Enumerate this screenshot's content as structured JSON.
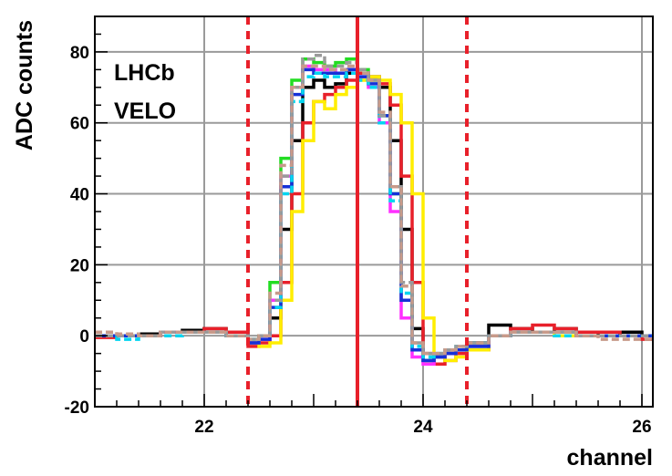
{
  "chart_data": {
    "type": "line",
    "step": true,
    "xlabel": "channel",
    "ylabel": "ADC counts",
    "xlim": [
      21,
      26.1
    ],
    "ylim": [
      -20,
      90
    ],
    "x_ticks": [
      22,
      24,
      26
    ],
    "y_ticks": [
      -20,
      0,
      20,
      40,
      60,
      80
    ],
    "grid": true,
    "annotations": [
      "LHCb",
      "VELO"
    ],
    "vertical_lines": [
      {
        "x": 22.4,
        "style": "dashed",
        "color": "#e8202a"
      },
      {
        "x": 23.4,
        "style": "solid",
        "color": "#e8202a"
      },
      {
        "x": 24.4,
        "style": "dashed",
        "color": "#e8202a"
      }
    ],
    "x": [
      21.0,
      21.2,
      21.4,
      21.6,
      21.8,
      22.0,
      22.2,
      22.4,
      22.5,
      22.6,
      22.7,
      22.8,
      22.9,
      23.0,
      23.1,
      23.2,
      23.3,
      23.4,
      23.5,
      23.6,
      23.7,
      23.8,
      23.9,
      24.0,
      24.1,
      24.2,
      24.3,
      24.4,
      24.6,
      24.8,
      25.0,
      25.2,
      25.4,
      25.6,
      25.8,
      26.0
    ],
    "series": [
      {
        "color": "#000000",
        "dash": false,
        "values": [
          0,
          0,
          0.5,
          1,
          1.5,
          2,
          1,
          -2,
          0,
          5,
          30,
          55,
          70,
          72,
          70,
          71,
          74,
          74,
          73,
          70,
          55,
          30,
          2,
          -7,
          -6,
          -5,
          -4,
          -2,
          3,
          2,
          1,
          2,
          1,
          0,
          1,
          0
        ]
      },
      {
        "color": "#e8202a",
        "dash": false,
        "values": [
          -0.5,
          0,
          0,
          1,
          1,
          2,
          1,
          -3,
          -2,
          0,
          15,
          40,
          60,
          66,
          68,
          70,
          72,
          74,
          73,
          71,
          65,
          45,
          15,
          -5,
          -8,
          -7,
          -5,
          -4,
          0,
          2,
          3,
          2,
          1,
          1,
          0,
          -1
        ]
      },
      {
        "color": "#ffee00",
        "dash": false,
        "values": [
          0,
          0,
          0,
          1,
          1,
          1,
          0,
          -2,
          -3,
          -2,
          10,
          35,
          55,
          66,
          64,
          68,
          70,
          72,
          73,
          72,
          68,
          60,
          40,
          5,
          -6,
          -7,
          -6,
          -4,
          0,
          1,
          1,
          0,
          0,
          0,
          0,
          0
        ]
      },
      {
        "color": "#22dd22",
        "dash": false,
        "values": [
          0,
          0,
          0,
          1,
          1,
          1,
          0,
          -2,
          0,
          15,
          50,
          72,
          78,
          77,
          76,
          77,
          78,
          75,
          72,
          62,
          40,
          10,
          -4,
          -7,
          -6,
          -5,
          -4,
          -3,
          0,
          1,
          1,
          1,
          0,
          0,
          0,
          0
        ]
      },
      {
        "color": "#ff30ff",
        "dash": false,
        "values": [
          0,
          0,
          0,
          1,
          1,
          1,
          0,
          -2,
          -1,
          10,
          45,
          70,
          76,
          75,
          75,
          74,
          75,
          73,
          70,
          60,
          35,
          5,
          -6,
          -8,
          -6,
          -5,
          -4,
          -3,
          0,
          1,
          1,
          1,
          0,
          0,
          0,
          0
        ]
      },
      {
        "color": "#1530d8",
        "dash": false,
        "values": [
          0,
          0,
          0,
          1,
          1,
          1,
          0,
          -2,
          -1,
          8,
          42,
          68,
          75,
          74,
          74,
          74,
          75,
          73,
          71,
          62,
          40,
          10,
          -4,
          -7,
          -6,
          -5,
          -4,
          -3,
          0,
          1,
          1,
          1,
          0,
          0,
          0,
          0
        ]
      },
      {
        "color": "#00d5f0",
        "dash": true,
        "values": [
          0,
          -1,
          0,
          0,
          1,
          1,
          0,
          -1,
          0,
          8,
          40,
          66,
          73,
          74,
          73,
          73,
          74,
          72,
          70,
          60,
          38,
          12,
          -3,
          -6,
          -5,
          -4,
          -3,
          -2,
          0,
          1,
          1,
          0,
          0,
          0,
          0,
          0
        ]
      },
      {
        "color": "#9a9a9a",
        "dash": true,
        "values": [
          0,
          0,
          0,
          1,
          1,
          1,
          0,
          -1,
          0,
          10,
          45,
          70,
          78,
          79,
          76,
          76,
          77,
          75,
          72,
          62,
          42,
          15,
          -2,
          -5,
          -5,
          -4,
          -3,
          -2,
          0,
          1,
          1,
          1,
          0,
          0,
          0,
          0
        ]
      },
      {
        "color": "#c89a8a",
        "dash": true,
        "values": [
          1,
          0.5,
          0,
          1,
          1,
          1,
          0,
          -1,
          0,
          12,
          48,
          70,
          76,
          76,
          75,
          75,
          76,
          74,
          72,
          63,
          42,
          14,
          -2,
          -5,
          -5,
          -4,
          -3,
          -2,
          0,
          1,
          1,
          1,
          0,
          -1,
          -1,
          -1
        ]
      }
    ]
  }
}
